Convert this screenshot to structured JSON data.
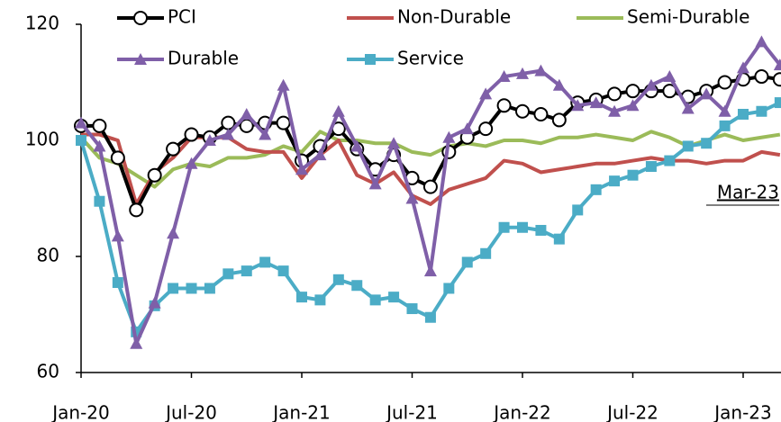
{
  "chart_data": {
    "type": "line",
    "categories": [
      "Jan-20",
      null,
      null,
      null,
      null,
      null,
      "Jul-20",
      null,
      null,
      null,
      null,
      null,
      "Jan-21",
      null,
      null,
      null,
      null,
      null,
      "Jul-21",
      null,
      null,
      null,
      null,
      null,
      "Jan-22",
      null,
      null,
      null,
      null,
      null,
      "Jul-22",
      null,
      null,
      null,
      null,
      null,
      "Jan-23",
      null,
      null
    ],
    "series": [
      {
        "name": "PCI",
        "color": "#000000",
        "marker": "circle",
        "values": [
          102.5,
          102.5,
          97,
          88,
          94,
          98.5,
          101,
          100.5,
          103,
          102.5,
          103,
          103,
          96.5,
          99,
          102,
          98.5,
          95,
          97.5,
          93.5,
          92,
          98,
          100.5,
          102,
          106,
          105,
          104.5,
          103.5,
          106.5,
          107,
          108,
          108.5,
          108.5,
          108.5,
          107.5,
          108.5,
          110,
          110.5,
          111,
          110.5
        ]
      },
      {
        "name": "Non-Durable",
        "color": "#c0504d",
        "marker": null,
        "values": [
          101,
          101,
          100,
          89,
          94.5,
          97,
          100.5,
          100.5,
          100.5,
          98.5,
          98,
          98,
          93.5,
          97.5,
          100,
          94,
          92.5,
          94.5,
          90.5,
          89,
          91.5,
          92.5,
          93.5,
          96.5,
          96,
          94.5,
          95,
          95.5,
          96,
          96,
          96.5,
          97,
          96.5,
          96.5,
          96,
          96.5,
          96.5,
          98,
          97.5
        ]
      },
      {
        "name": "Semi-Durable",
        "color": "#9bbb59",
        "marker": null,
        "values": [
          100.5,
          97,
          96,
          94,
          92,
          95,
          96,
          95.5,
          97,
          97,
          97.5,
          99,
          98,
          101.5,
          100,
          100,
          99.5,
          99.5,
          98,
          97.5,
          99,
          99.5,
          99,
          100,
          100,
          99.5,
          100.5,
          100.5,
          101,
          100.5,
          100,
          101.5,
          100.5,
          99,
          100,
          101,
          100,
          100.5,
          101
        ]
      },
      {
        "name": "Durable",
        "color": "#7f5fa8",
        "marker": "triangle",
        "values": [
          103,
          99,
          83.5,
          65,
          72,
          84,
          96,
          100,
          101,
          104.5,
          101,
          109.5,
          95,
          97.5,
          105,
          99,
          92.5,
          99.5,
          90,
          77.5,
          100.5,
          102,
          108,
          111,
          111.5,
          112,
          109.5,
          106,
          106.5,
          105,
          106,
          109.5,
          111,
          105.5,
          108,
          105,
          112.5,
          117,
          113
        ]
      },
      {
        "name": "Service",
        "color": "#4bacc6",
        "marker": "square",
        "values": [
          100,
          89.5,
          75.5,
          67,
          71.5,
          74.5,
          74.5,
          74.5,
          77,
          77.5,
          79,
          77.5,
          73,
          72.5,
          76,
          75,
          72.5,
          73,
          71,
          69.5,
          74.5,
          79,
          80.5,
          85,
          85,
          84.5,
          83,
          88,
          91.5,
          93,
          94,
          95.5,
          96.5,
          99,
          99.5,
          102.5,
          104.5,
          105,
          106.5
        ]
      }
    ],
    "ylim": [
      60,
      120
    ],
    "yticks": [
      60,
      80,
      100,
      120
    ],
    "annotation": "Mar-23"
  }
}
